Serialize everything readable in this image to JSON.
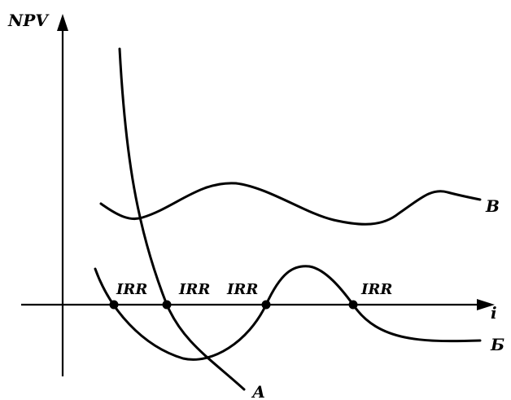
{
  "axes": {
    "y_label": "NPV",
    "x_label": "i"
  },
  "curves": {
    "a_label": "А",
    "b_label": "Б",
    "v_label": "В"
  },
  "irr_points": [
    {
      "label": "IRR"
    },
    {
      "label": "IRR"
    },
    {
      "label": "IRR"
    },
    {
      "label": "IRR"
    }
  ],
  "colors": {
    "line": "#000000",
    "background": "#ffffff"
  }
}
